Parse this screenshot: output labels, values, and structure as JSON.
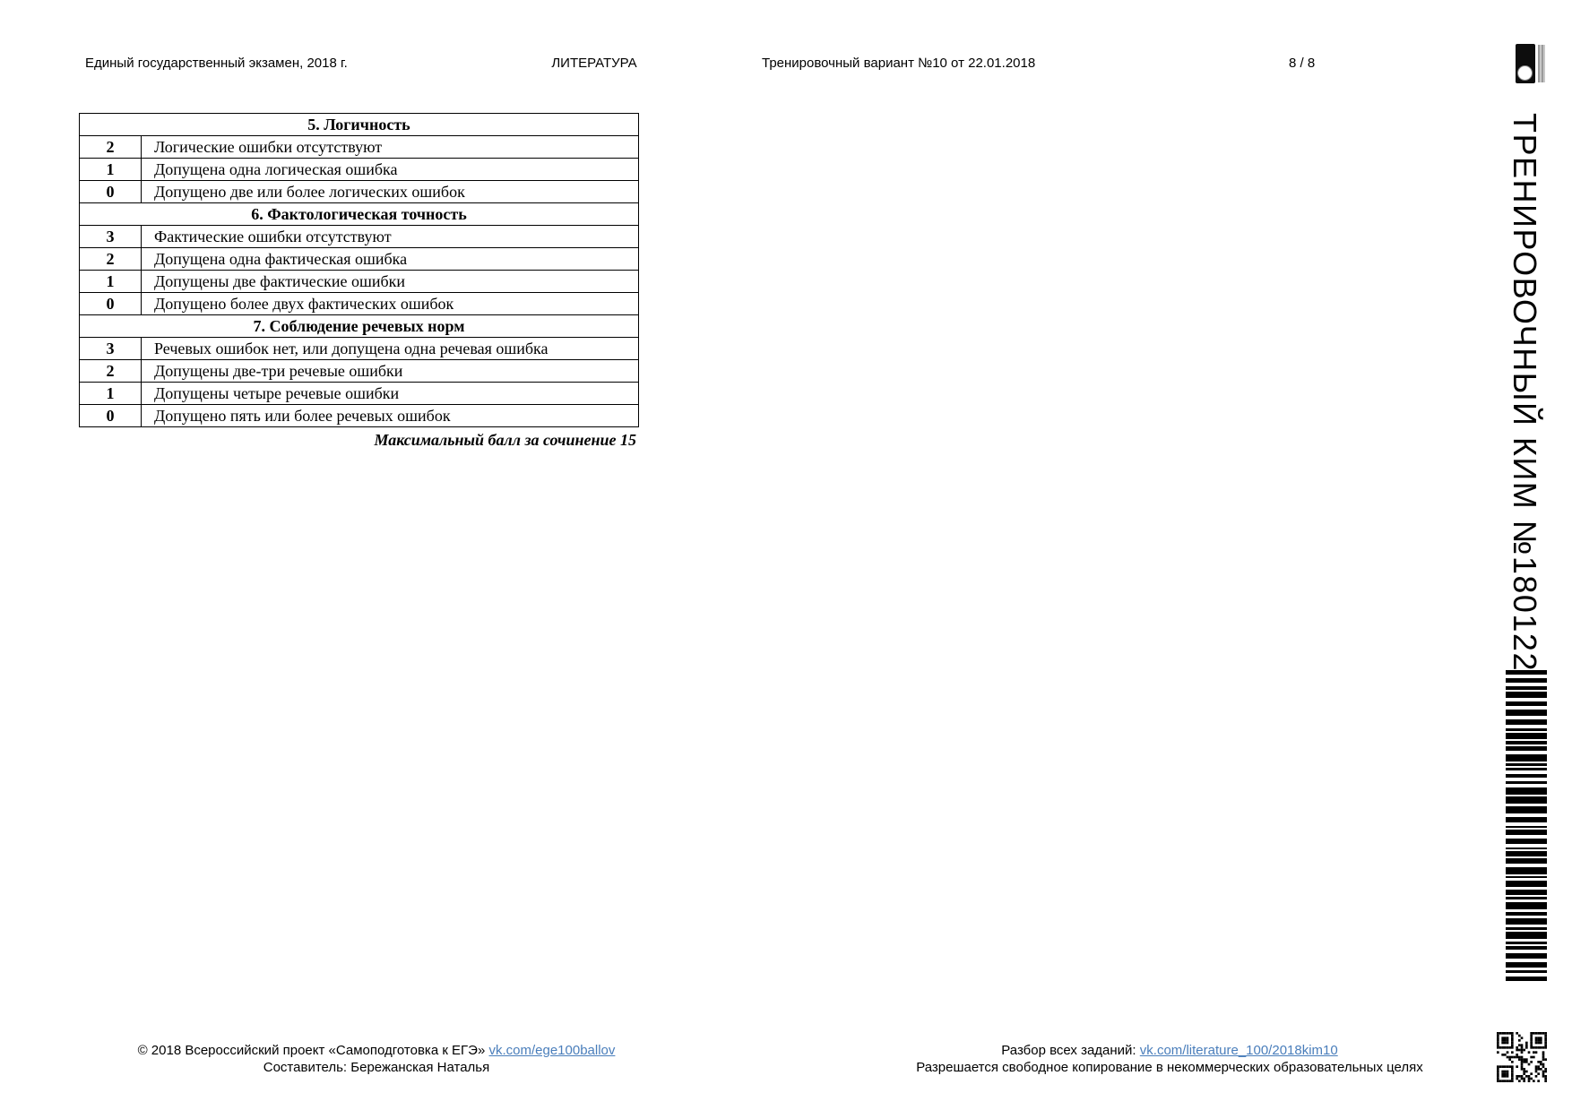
{
  "header": {
    "exam_title": "Единый государственный экзамен, 2018 г.",
    "subject": "ЛИТЕРАТУРА",
    "variant": "Тренировочный вариант №10 от 22.01.2018",
    "page_number": "8 / 8"
  },
  "sidebar": {
    "vertical_label": "ТРЕНИРОВОЧНЫЙ КИМ №180122",
    "icons": [
      "project-logo-icon",
      "barcode",
      "qr-code"
    ]
  },
  "criteria_table": {
    "sections": [
      {
        "title": "5. Логичность",
        "rows": [
          {
            "score": "2",
            "text": "Логические ошибки отсутствуют"
          },
          {
            "score": "1",
            "text": "Допущена одна логическая ошибка"
          },
          {
            "score": "0",
            "text": "Допущено две или более логических ошибок"
          }
        ]
      },
      {
        "title": "6. Фактологическая точность",
        "rows": [
          {
            "score": "3",
            "text": "Фактические ошибки отсутствуют"
          },
          {
            "score": "2",
            "text": "Допущена одна фактическая ошибка"
          },
          {
            "score": "1",
            "text": "Допущены две фактические ошибки"
          },
          {
            "score": "0",
            "text": "Допущено более двух фактических ошибок"
          }
        ]
      },
      {
        "title": "7. Соблюдение речевых норм",
        "rows": [
          {
            "score": "3",
            "text": "Речевых ошибок нет, или допущена одна речевая ошибка"
          },
          {
            "score": "2",
            "text": "Допущены две-три речевые ошибки"
          },
          {
            "score": "1",
            "text": "Допущены четыре речевые ошибки"
          },
          {
            "score": "0",
            "text": "Допущено пять или более речевых ошибок"
          }
        ]
      }
    ],
    "caption": "Максимальный балл за сочинение 15"
  },
  "footer": {
    "left_line1_prefix": "© 2018 Всероссийский проект «Самоподготовка к ЕГЭ» ",
    "left_link": "vk.com/ege100ballov",
    "left_line2": "Составитель: Бережанская Наталья",
    "right_line1_prefix": "Разбор всех заданий: ",
    "right_link": "vk.com/literature_100/2018kim10",
    "right_line2": "Разрешается свободное копирование в некоммерческих образовательных целях"
  },
  "colors": {
    "link": "#4a7ebb",
    "text": "#000000",
    "paper": "#ffffff"
  }
}
